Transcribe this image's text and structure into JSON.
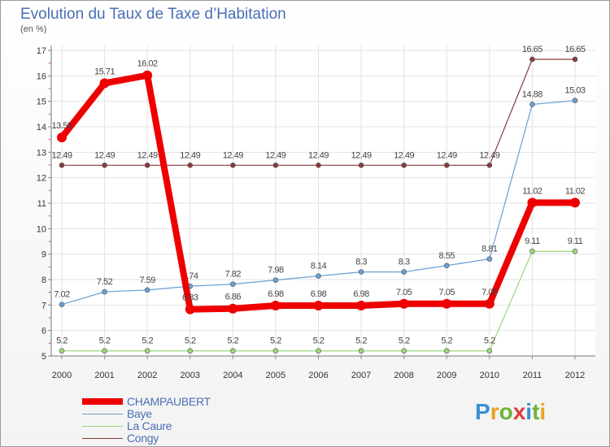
{
  "title": "Evolution du Taux de Taxe d’Habitation",
  "unit": "(en %)",
  "logo": [
    "P",
    "r",
    "o",
    "x",
    "i",
    "t",
    "i"
  ],
  "logo_colors": [
    "#3a8fd0",
    "#e8a21f",
    "#6fb33a",
    "#e03c3c",
    "#3a8fd0",
    "#6fb33a",
    "#e8a21f"
  ],
  "chart_data": {
    "type": "line",
    "x": [
      "2000",
      "2001",
      "2002",
      "2003",
      "2004",
      "2005",
      "2006",
      "2007",
      "2008",
      "2009",
      "2010",
      "2011",
      "2012"
    ],
    "ylim": [
      5,
      17
    ],
    "yticks": [
      5,
      6,
      7,
      8,
      9,
      10,
      11,
      12,
      13,
      14,
      15,
      16,
      17
    ],
    "grid": true,
    "legend_position": "bottom-left",
    "series": [
      {
        "name": "CHAMPAUBERT",
        "color": "#ee0000",
        "values": [
          13.58,
          15.71,
          16.02,
          6.83,
          6.86,
          6.98,
          6.98,
          6.98,
          7.05,
          7.05,
          7.05,
          11.02,
          11.02
        ],
        "labels": [
          "13.58",
          "15.71",
          "16.02",
          "6.83",
          "6.86",
          "6.98",
          "6.98",
          "6.98",
          "7.05",
          "7.05",
          "7.05",
          "11.02",
          "11.02"
        ]
      },
      {
        "name": "Baye",
        "color": "#6b9fd2",
        "values": [
          7.02,
          7.52,
          7.59,
          7.74,
          7.82,
          7.98,
          8.14,
          8.3,
          8.3,
          8.55,
          8.81,
          14.88,
          15.03
        ],
        "labels": [
          "7.02",
          "7.52",
          "7.59",
          "7.74",
          "7.82",
          "7.98",
          "8.14",
          "8.3",
          "8.3",
          "8.55",
          "8.81",
          "14.88",
          "15.03"
        ]
      },
      {
        "name": "La Caure",
        "color": "#9ed67a",
        "values": [
          5.2,
          5.2,
          5.2,
          5.2,
          5.2,
          5.2,
          5.2,
          5.2,
          5.2,
          5.2,
          5.2,
          9.11,
          9.11
        ],
        "labels": [
          "5.2",
          "5.2",
          "5.2",
          "5.2",
          "5.2",
          "5.2",
          "5.2",
          "5.2",
          "5.2",
          "5.2",
          "5.2",
          "9.11",
          "9.11"
        ]
      },
      {
        "name": "Congy",
        "color": "#8a3b3b",
        "values": [
          12.49,
          12.49,
          12.49,
          12.49,
          12.49,
          12.49,
          12.49,
          12.49,
          12.49,
          12.49,
          12.49,
          16.65,
          16.65
        ],
        "labels": [
          "12.49",
          "12.49",
          "12.49",
          "12.49",
          "12.49",
          "12.49",
          "12.49",
          "12.49",
          "12.49",
          "12.49",
          "12.49",
          "16.65",
          "16.65"
        ]
      }
    ]
  }
}
